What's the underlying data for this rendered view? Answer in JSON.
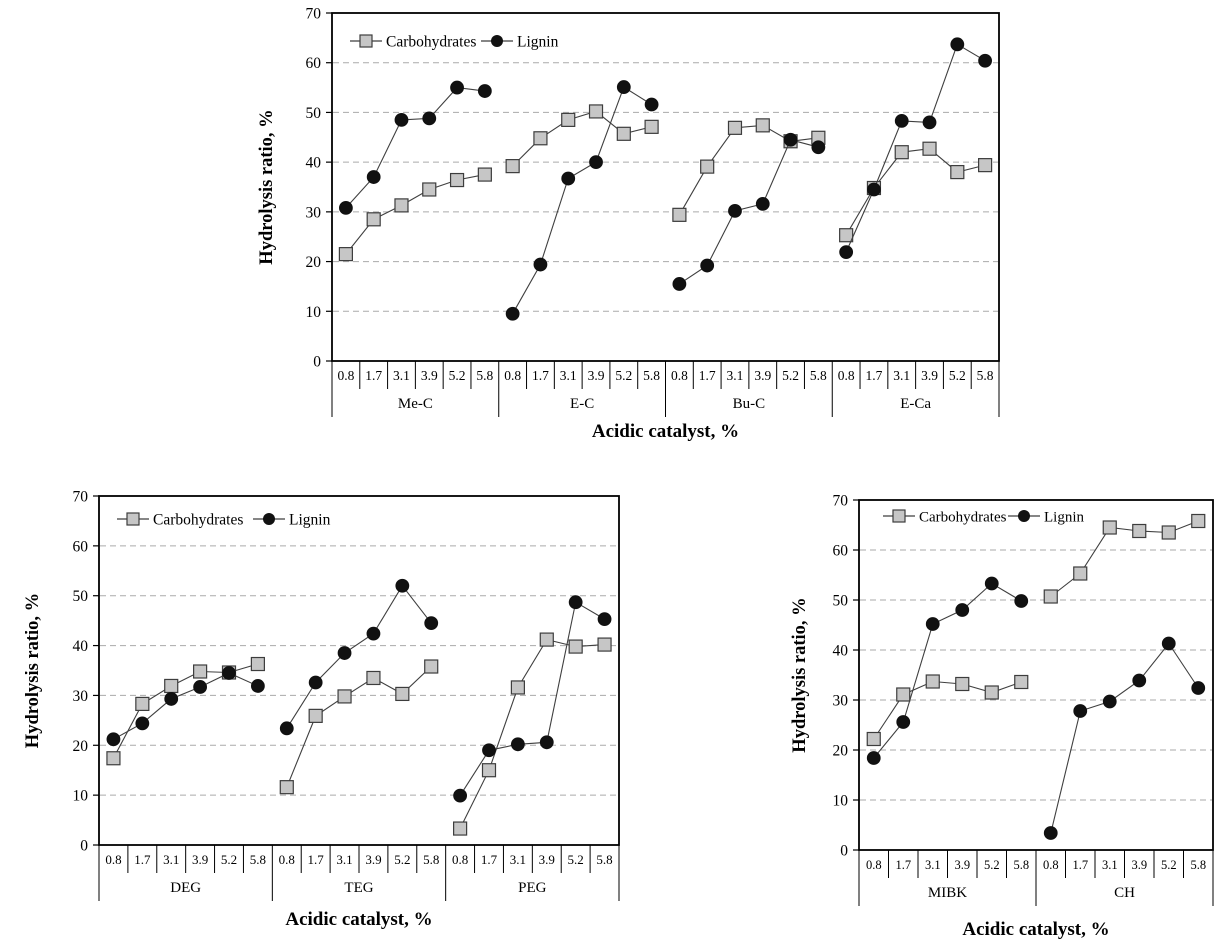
{
  "colors": {
    "background": "#ffffff",
    "carbohydrate_marker": "#c6c6c6",
    "marker_outline": "#3d3d3d",
    "lignin_marker": "#111111",
    "series_line": "#3f3f3f",
    "gridline": "#aaaaaa",
    "axis": "#000000",
    "text": "#000000"
  },
  "chart_data": [
    {
      "id": "top",
      "type": "line",
      "title": "",
      "ylabel": "Hydrolysis ratio, %",
      "xlabel": "Acidic catalyst, %",
      "ylim": [
        0,
        70
      ],
      "grid": "horizontal-dashed",
      "legend_position": "top-left-inside",
      "y_ticks": [
        "0",
        "10",
        "20",
        "30",
        "40",
        "50",
        "60",
        "70"
      ],
      "x_ticks": [
        "0.8",
        "1.7",
        "3.1",
        "3.9",
        "5.2",
        "5.8"
      ],
      "legend": [
        "Carbohydrates",
        "Lignin"
      ],
      "groups": [
        {
          "label": "Me-C",
          "series": [
            {
              "name": "Carbohydrates",
              "values": [
                21.5,
                28.5,
                31.3,
                34.5,
                36.4,
                37.5
              ]
            },
            {
              "name": "Lignin",
              "values": [
                30.8,
                37.0,
                48.5,
                48.8,
                55.0,
                54.3
              ]
            }
          ]
        },
        {
          "label": "E-C",
          "series": [
            {
              "name": "Carbohydrates",
              "values": [
                39.2,
                44.8,
                48.5,
                50.2,
                45.7,
                47.1
              ]
            },
            {
              "name": "Lignin",
              "values": [
                9.5,
                19.4,
                36.7,
                40.0,
                55.1,
                51.6
              ]
            }
          ]
        },
        {
          "label": "Bu-C",
          "series": [
            {
              "name": "Carbohydrates",
              "values": [
                29.4,
                39.1,
                46.9,
                47.4,
                44.2,
                44.9
              ]
            },
            {
              "name": "Lignin",
              "values": [
                15.5,
                19.2,
                30.2,
                31.6,
                44.5,
                43.0
              ]
            }
          ]
        },
        {
          "label": "E-Ca",
          "series": [
            {
              "name": "Carbohydrates",
              "values": [
                25.3,
                34.8,
                42.0,
                42.7,
                38.0,
                39.4
              ]
            },
            {
              "name": "Lignin",
              "values": [
                21.9,
                34.5,
                48.3,
                48.0,
                63.7,
                60.4
              ]
            }
          ]
        }
      ]
    },
    {
      "id": "bl",
      "type": "line",
      "title": "",
      "ylabel": "Hydrolysis ratio, %",
      "xlabel": "Acidic catalyst, %",
      "ylim": [
        0,
        70
      ],
      "grid": "horizontal-dashed",
      "legend_position": "top-left-inside",
      "y_ticks": [
        "0",
        "10",
        "20",
        "30",
        "40",
        "50",
        "60",
        "70"
      ],
      "x_ticks": [
        "0.8",
        "1.7",
        "3.1",
        "3.9",
        "5.2",
        "5.8"
      ],
      "legend": [
        "Carbohydrates",
        "Lignin"
      ],
      "groups": [
        {
          "label": "DEG",
          "series": [
            {
              "name": "Carbohydrates",
              "values": [
                17.4,
                28.3,
                31.9,
                34.8,
                34.6,
                36.3
              ]
            },
            {
              "name": "Lignin",
              "values": [
                21.2,
                24.4,
                29.3,
                31.7,
                34.5,
                31.9
              ]
            }
          ]
        },
        {
          "label": "TEG",
          "series": [
            {
              "name": "Carbohydrates",
              "values": [
                11.6,
                25.9,
                29.8,
                33.5,
                30.3,
                35.8
              ]
            },
            {
              "name": "Lignin",
              "values": [
                23.4,
                32.6,
                38.5,
                42.4,
                52.0,
                44.5
              ]
            }
          ]
        },
        {
          "label": "PEG",
          "series": [
            {
              "name": "Carbohydrates",
              "values": [
                3.3,
                15.0,
                31.6,
                41.2,
                39.8,
                40.2
              ]
            },
            {
              "name": "Lignin",
              "values": [
                9.9,
                19.0,
                20.2,
                20.6,
                48.7,
                45.3
              ]
            }
          ]
        }
      ]
    },
    {
      "id": "br",
      "type": "line",
      "title": "",
      "ylabel": "Hydrolysis ratio, %",
      "xlabel": "Acidic catalyst, %",
      "ylim": [
        0,
        70
      ],
      "grid": "horizontal-dashed",
      "legend_position": "top-left-inside",
      "y_ticks": [
        "0",
        "10",
        "20",
        "30",
        "40",
        "50",
        "60",
        "70"
      ],
      "x_ticks": [
        "0.8",
        "1.7",
        "3.1",
        "3.9",
        "5.2",
        "5.8"
      ],
      "legend": [
        "Carbohydrates",
        "Lignin"
      ],
      "groups": [
        {
          "label": "MIBK",
          "series": [
            {
              "name": "Carbohydrates",
              "values": [
                22.2,
                31.1,
                33.7,
                33.2,
                31.5,
                33.6
              ]
            },
            {
              "name": "Lignin",
              "values": [
                18.4,
                25.6,
                45.2,
                48.0,
                53.3,
                49.8
              ]
            }
          ]
        },
        {
          "label": "CH",
          "series": [
            {
              "name": "Carbohydrates",
              "values": [
                50.7,
                55.3,
                64.5,
                63.8,
                63.5,
                65.8
              ]
            },
            {
              "name": "Lignin",
              "values": [
                3.4,
                27.8,
                29.7,
                33.9,
                41.3,
                32.4
              ]
            }
          ]
        }
      ]
    }
  ]
}
